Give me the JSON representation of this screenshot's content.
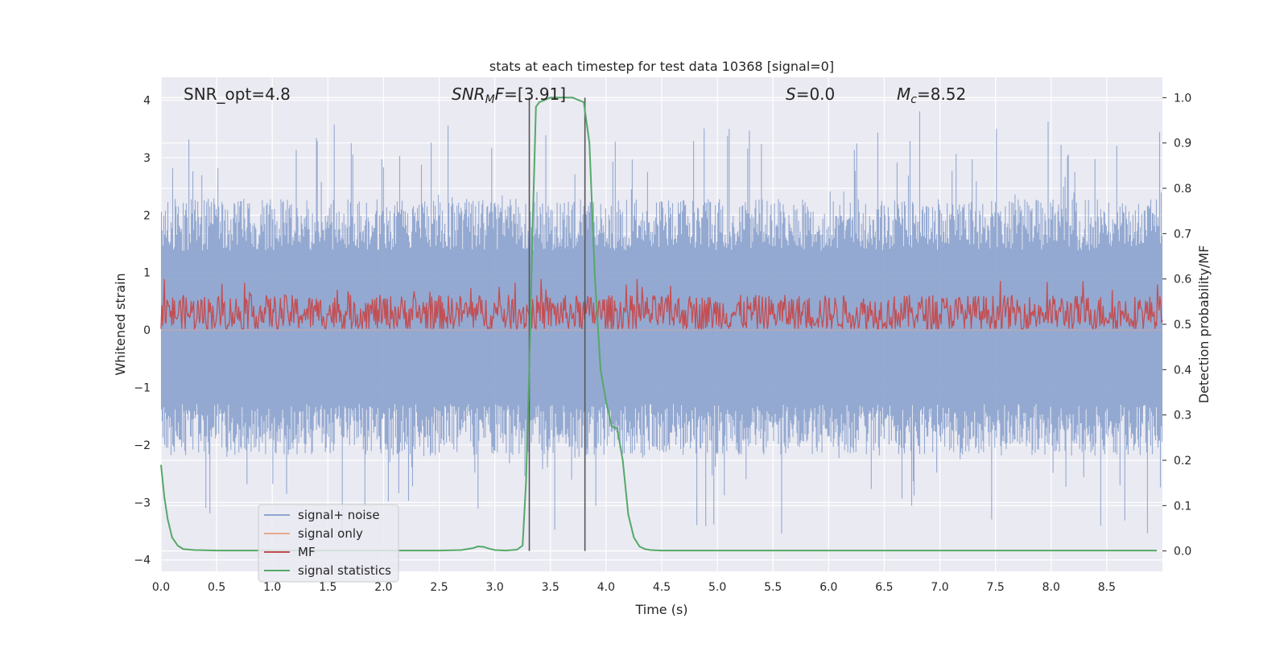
{
  "chart_data": {
    "type": "line",
    "title": "stats at each timestep for test data 10368 [signal=0]",
    "xlabel": "Time (s)",
    "ylabel_left": "Whitened strain",
    "ylabel_right": "Detection probability/MF",
    "xlim": [
      0.0,
      9.0
    ],
    "ylim_left": [
      -4.2,
      4.4
    ],
    "ylim_right": [
      -0.045,
      1.045
    ],
    "x_ticks": [
      0.0,
      0.5,
      1.0,
      1.5,
      2.0,
      2.5,
      3.0,
      3.5,
      4.0,
      4.5,
      5.0,
      5.5,
      6.0,
      6.5,
      7.0,
      7.5,
      8.0,
      8.5
    ],
    "x_tick_labels": [
      "0.0",
      "0.5",
      "1.0",
      "1.5",
      "2.0",
      "2.5",
      "3.0",
      "3.5",
      "4.0",
      "4.5",
      "5.0",
      "5.5",
      "6.0",
      "6.5",
      "7.0",
      "7.5",
      "8.0",
      "8.5"
    ],
    "y_left_ticks": [
      4,
      3,
      2,
      1,
      0,
      -1,
      -2,
      -3,
      -4
    ],
    "y_left_tick_labels": [
      "4",
      "3",
      "2",
      "1",
      "0",
      "−1",
      "−2",
      "−3",
      "−4"
    ],
    "y_right_ticks": [
      1.0,
      0.9,
      0.8,
      0.7,
      0.6,
      0.5,
      0.4,
      0.3,
      0.2,
      0.1,
      0.0
    ],
    "y_right_tick_labels": [
      "1.0",
      "0.9",
      "0.8",
      "0.7",
      "0.6",
      "0.5",
      "0.4",
      "0.3",
      "0.2",
      "0.1",
      "0.0"
    ],
    "grid": true,
    "legend_position": "lower-left",
    "annotations": {
      "snr_opt": "SNR_opt=4.8",
      "snr_mf_main": "SNR",
      "snr_mf_sub": "M",
      "snr_mf_f": "F",
      "snr_mf_val": "=[3.91]",
      "s_sym": "S",
      "s_val": "=0.0",
      "mc_main": "M",
      "mc_sub": "c",
      "mc_val": "=8.52"
    },
    "vertical_markers": [
      3.31,
      3.81
    ],
    "series": [
      {
        "name": "signal+ noise",
        "color": "#8fa5cf",
        "axis": "left",
        "kind": "noise",
        "typical_range": [
          -1.6,
          1.7
        ],
        "peak_max": 4.0,
        "peak_min": -3.85
      },
      {
        "name": "signal only",
        "color": "#e8a98c",
        "axis": "left",
        "kind": "flat",
        "values_constant": 0.0
      },
      {
        "name": "MF",
        "color": "#c44e52",
        "axis": "right",
        "kind": "noise",
        "typical_range": [
          0.5,
          0.55
        ],
        "peak_max": 0.6,
        "peak_min": 0.49
      },
      {
        "name": "signal statistics",
        "color": "#55a868",
        "axis": "right",
        "kind": "line",
        "x": [
          0.0,
          0.03,
          0.06,
          0.1,
          0.15,
          0.2,
          0.3,
          0.5,
          1.0,
          2.0,
          2.5,
          2.7,
          2.8,
          2.85,
          2.9,
          2.95,
          3.0,
          3.1,
          3.2,
          3.25,
          3.28,
          3.31,
          3.34,
          3.37,
          3.4,
          3.45,
          3.5,
          3.6,
          3.7,
          3.75,
          3.8,
          3.85,
          3.9,
          3.95,
          4.0,
          4.05,
          4.1,
          4.15,
          4.2,
          4.25,
          4.3,
          4.35,
          4.4,
          4.5,
          5.0,
          6.0,
          7.0,
          8.0,
          8.95
        ],
        "y": [
          0.19,
          0.12,
          0.07,
          0.03,
          0.012,
          0.004,
          0.002,
          0.001,
          0.001,
          0.001,
          0.001,
          0.002,
          0.006,
          0.01,
          0.009,
          0.005,
          0.002,
          0.001,
          0.003,
          0.012,
          0.15,
          0.4,
          0.72,
          0.98,
          0.99,
          0.995,
          1.0,
          1.0,
          1.0,
          0.995,
          0.99,
          0.9,
          0.6,
          0.4,
          0.33,
          0.275,
          0.27,
          0.2,
          0.08,
          0.03,
          0.01,
          0.004,
          0.002,
          0.001,
          0.001,
          0.001,
          0.001,
          0.001,
          0.001
        ]
      }
    ]
  }
}
